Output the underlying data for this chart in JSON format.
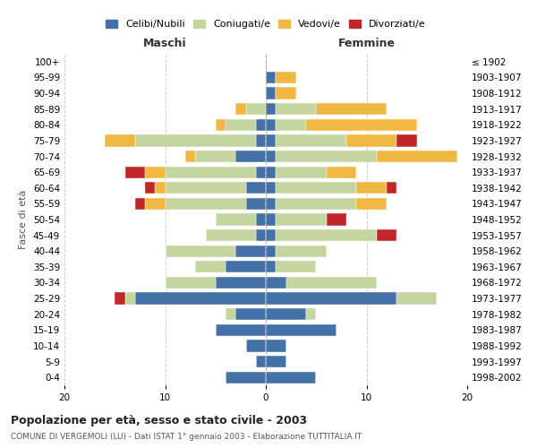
{
  "age_groups": [
    "0-4",
    "5-9",
    "10-14",
    "15-19",
    "20-24",
    "25-29",
    "30-34",
    "35-39",
    "40-44",
    "45-49",
    "50-54",
    "55-59",
    "60-64",
    "65-69",
    "70-74",
    "75-79",
    "80-84",
    "85-89",
    "90-94",
    "95-99",
    "100+"
  ],
  "birth_years": [
    "1998-2002",
    "1993-1997",
    "1988-1992",
    "1983-1987",
    "1978-1982",
    "1973-1977",
    "1968-1972",
    "1963-1967",
    "1958-1962",
    "1953-1957",
    "1948-1952",
    "1943-1947",
    "1938-1942",
    "1933-1937",
    "1928-1932",
    "1923-1927",
    "1918-1922",
    "1913-1917",
    "1908-1912",
    "1903-1907",
    "≤ 1902"
  ],
  "colors": {
    "celibe": "#4472a8",
    "coniugato": "#c5d5a0",
    "vedovo": "#f0b842",
    "divorziato": "#c0262a"
  },
  "maschi": {
    "celibe": [
      4,
      1,
      2,
      5,
      3,
      13,
      5,
      4,
      3,
      1,
      1,
      2,
      2,
      1,
      3,
      1,
      1,
      0,
      0,
      0,
      0
    ],
    "coniugato": [
      0,
      0,
      0,
      0,
      1,
      1,
      5,
      3,
      7,
      5,
      4,
      8,
      8,
      9,
      4,
      12,
      3,
      2,
      0,
      0,
      0
    ],
    "vedovo": [
      0,
      0,
      0,
      0,
      0,
      0,
      0,
      0,
      0,
      0,
      0,
      2,
      1,
      2,
      1,
      3,
      1,
      1,
      0,
      0,
      0
    ],
    "divorziato": [
      0,
      0,
      0,
      0,
      0,
      1,
      0,
      0,
      0,
      0,
      0,
      1,
      1,
      2,
      0,
      0,
      0,
      0,
      0,
      0,
      0
    ]
  },
  "femmine": {
    "celibe": [
      5,
      2,
      2,
      7,
      4,
      13,
      2,
      1,
      1,
      1,
      1,
      1,
      1,
      1,
      1,
      1,
      1,
      1,
      1,
      1,
      0
    ],
    "coniugato": [
      0,
      0,
      0,
      0,
      1,
      4,
      9,
      4,
      5,
      10,
      5,
      8,
      8,
      5,
      10,
      7,
      3,
      4,
      0,
      0,
      0
    ],
    "vedovo": [
      0,
      0,
      0,
      0,
      0,
      0,
      0,
      0,
      0,
      0,
      0,
      3,
      3,
      3,
      8,
      5,
      11,
      7,
      2,
      2,
      0
    ],
    "divorziato": [
      0,
      0,
      0,
      0,
      0,
      0,
      0,
      0,
      0,
      2,
      2,
      0,
      1,
      0,
      0,
      2,
      0,
      0,
      0,
      0,
      0
    ]
  },
  "title": "Popolazione per età, sesso e stato civile - 2003",
  "subtitle": "COMUNE DI VERGEMOLI (LU) - Dati ISTAT 1° gennaio 2003 - Elaborazione TUTTITALIA.IT",
  "xlabel_left": "Maschi",
  "xlabel_right": "Femmine",
  "ylabel_left": "Fasce di età",
  "xlim": 20,
  "legend_labels": [
    "Celibi/Nubili",
    "Coniugati/e",
    "Vedovi/e",
    "Divorziati/e"
  ]
}
